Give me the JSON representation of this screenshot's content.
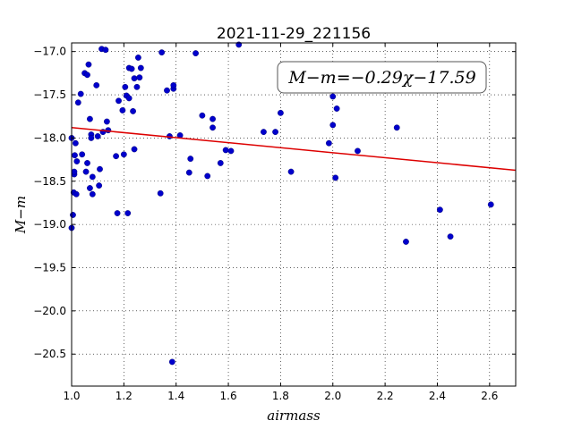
{
  "chart_data": {
    "type": "scatter",
    "title": "2021-11-29_221156",
    "xlabel": "airmass",
    "ylabel": "M−m",
    "xlim": [
      1.0,
      2.7
    ],
    "ylim": [
      -20.87,
      -16.9
    ],
    "x_ticks": [
      1.0,
      1.2,
      1.4,
      1.6,
      1.8,
      2.0,
      2.2,
      2.4,
      2.6
    ],
    "x_tick_labels": [
      "1.0",
      "1.2",
      "1.4",
      "1.6",
      "1.8",
      "2.0",
      "2.2",
      "2.4",
      "2.6"
    ],
    "y_ticks": [
      -17.0,
      -17.5,
      -18.0,
      -18.5,
      -19.0,
      -19.5,
      -20.0,
      -20.5
    ],
    "y_tick_labels": [
      "−17.0",
      "−17.5",
      "−18.0",
      "−18.5",
      "−19.0",
      "−19.5",
      "−20.0",
      "−20.5"
    ],
    "grid": true,
    "annotation": "M−m=−0.29χ−17.59",
    "fit_line": {
      "slope": -0.29,
      "intercept": -17.59,
      "color": "#dd0000"
    },
    "point_color": "#0000cc",
    "points": [
      [
        1.0,
        -19.04
      ],
      [
        1.0,
        -18.0
      ],
      [
        1.005,
        -18.89
      ],
      [
        1.008,
        -18.63
      ],
      [
        1.01,
        -18.42
      ],
      [
        1.01,
        -18.39
      ],
      [
        1.012,
        -18.2
      ],
      [
        1.015,
        -18.06
      ],
      [
        1.018,
        -18.65
      ],
      [
        1.02,
        -18.27
      ],
      [
        1.025,
        -17.59
      ],
      [
        1.035,
        -17.49
      ],
      [
        1.04,
        -18.19
      ],
      [
        1.05,
        -17.25
      ],
      [
        1.055,
        -18.39
      ],
      [
        1.06,
        -17.27
      ],
      [
        1.06,
        -18.29
      ],
      [
        1.065,
        -17.15
      ],
      [
        1.07,
        -18.58
      ],
      [
        1.07,
        -17.78
      ],
      [
        1.075,
        -17.96
      ],
      [
        1.075,
        -18.0
      ],
      [
        1.08,
        -18.65
      ],
      [
        1.08,
        -18.45
      ],
      [
        1.095,
        -17.39
      ],
      [
        1.1,
        -17.98
      ],
      [
        1.105,
        -18.55
      ],
      [
        1.108,
        -18.36
      ],
      [
        1.115,
        -16.97
      ],
      [
        1.12,
        -17.93
      ],
      [
        1.13,
        -16.98
      ],
      [
        1.135,
        -17.81
      ],
      [
        1.14,
        -17.91
      ],
      [
        1.17,
        -18.21
      ],
      [
        1.175,
        -18.87
      ],
      [
        1.18,
        -17.57
      ],
      [
        1.195,
        -17.68
      ],
      [
        1.2,
        -18.19
      ],
      [
        1.205,
        -17.41
      ],
      [
        1.21,
        -17.51
      ],
      [
        1.215,
        -18.87
      ],
      [
        1.22,
        -17.19
      ],
      [
        1.22,
        -17.54
      ],
      [
        1.23,
        -17.2
      ],
      [
        1.235,
        -17.69
      ],
      [
        1.24,
        -17.31
      ],
      [
        1.24,
        -18.13
      ],
      [
        1.25,
        -17.41
      ],
      [
        1.255,
        -17.07
      ],
      [
        1.26,
        -17.3
      ],
      [
        1.265,
        -17.19
      ],
      [
        1.34,
        -18.64
      ],
      [
        1.345,
        -17.01
      ],
      [
        1.365,
        -17.45
      ],
      [
        1.375,
        -17.98
      ],
      [
        1.385,
        -20.59
      ],
      [
        1.39,
        -17.43
      ],
      [
        1.39,
        -17.39
      ],
      [
        1.415,
        -17.97
      ],
      [
        1.45,
        -18.4
      ],
      [
        1.455,
        -18.24
      ],
      [
        1.475,
        -17.02
      ],
      [
        1.5,
        -17.74
      ],
      [
        1.52,
        -18.44
      ],
      [
        1.54,
        -17.78
      ],
      [
        1.54,
        -17.88
      ],
      [
        1.57,
        -18.29
      ],
      [
        1.59,
        -18.14
      ],
      [
        1.61,
        -18.15
      ],
      [
        1.64,
        -16.92
      ],
      [
        1.735,
        -17.93
      ],
      [
        1.78,
        -17.93
      ],
      [
        1.8,
        -17.71
      ],
      [
        1.84,
        -18.39
      ],
      [
        1.985,
        -18.06
      ],
      [
        2.0,
        -17.52
      ],
      [
        2.0,
        -17.85
      ],
      [
        2.01,
        -18.46
      ],
      [
        2.015,
        -17.66
      ],
      [
        2.095,
        -18.15
      ],
      [
        2.245,
        -17.88
      ],
      [
        2.28,
        -19.2
      ],
      [
        2.41,
        -18.83
      ],
      [
        2.45,
        -19.14
      ],
      [
        2.605,
        -18.77
      ]
    ]
  }
}
